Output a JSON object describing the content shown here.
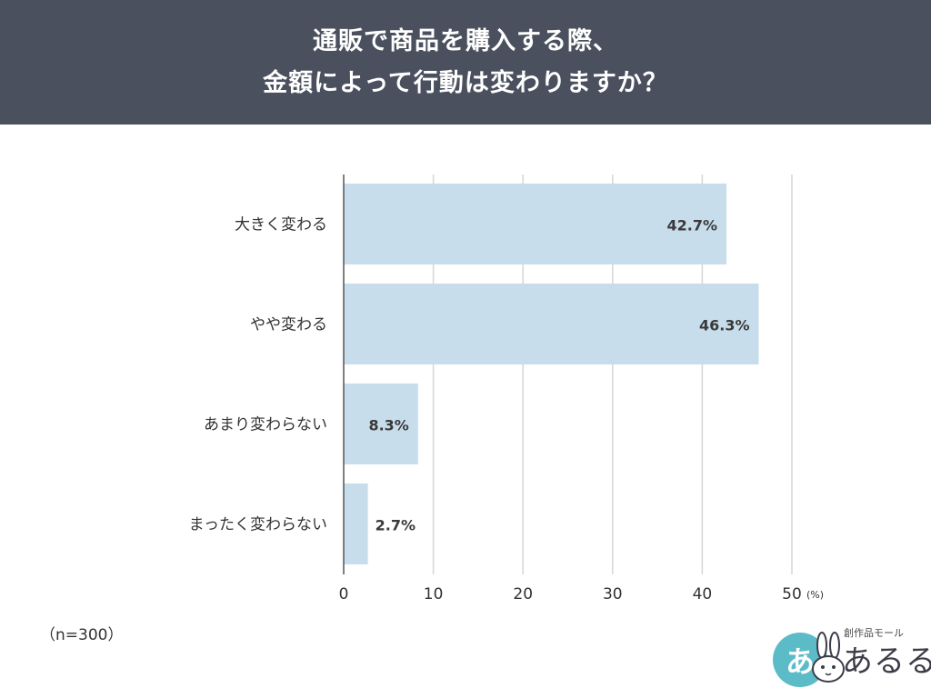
{
  "header": {
    "title_line1": "通販で商品を購入する際、",
    "title_line2": "金額によって行動は変わりますか？"
  },
  "chart_data": {
    "type": "bar",
    "orientation": "horizontal",
    "categories": [
      "大きく変わる",
      "やや変わる",
      "あまり変わらない",
      "まったく変わらない"
    ],
    "values": [
      42.7,
      46.3,
      8.3,
      2.7
    ],
    "data_labels": [
      "42.7%",
      "46.3%",
      "8.3%",
      "2.7%"
    ],
    "x_ticks": [
      0,
      10,
      20,
      30,
      40,
      50
    ],
    "x_unit": "(%)",
    "xlim": [
      0,
      50
    ],
    "grid": true,
    "bar_color": "#c7ddec",
    "grid_color": "#d6d6d6"
  },
  "footer": {
    "sample_size": "（n=300）"
  },
  "logo": {
    "circle_text": "あ",
    "tagline": "創作品モール",
    "name": "あるる"
  }
}
